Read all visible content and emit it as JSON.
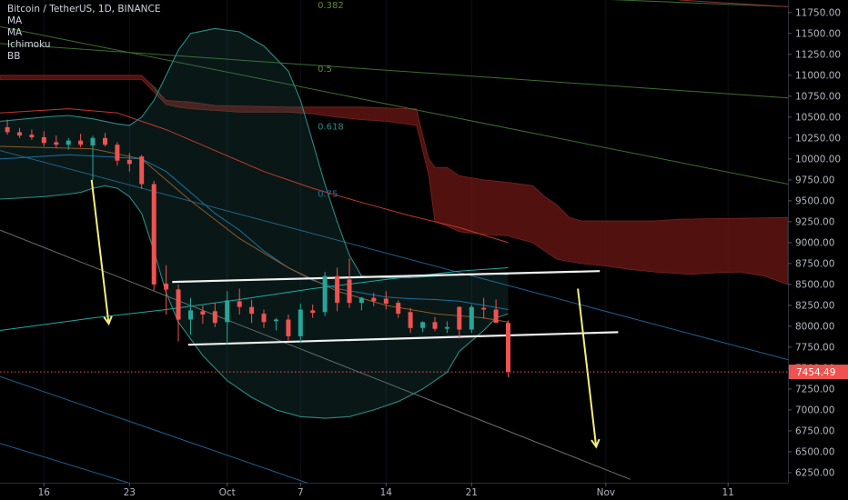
{
  "legend": {
    "title": "Bitcoin / TetherUS, 1D, BINANCE",
    "indicators": [
      "MA",
      "MA",
      "Ichimoku",
      "BB"
    ]
  },
  "chart_data": {
    "type": "candlestick",
    "symbol": "Bitcoin / TetherUS",
    "interval": "1D",
    "exchange": "BINANCE",
    "y_ticks": [
      6250,
      6500,
      6750,
      7000,
      7250,
      7500,
      7750,
      8000,
      8250,
      8500,
      8750,
      9000,
      9250,
      9500,
      9750,
      10000,
      10250,
      10500,
      10750,
      11000,
      11250,
      11500,
      11750
    ],
    "y_tick_labels": [
      "6250.00",
      "6500.00",
      "6750.00",
      "7000.00",
      "7250.00",
      "7500.00",
      "7750.00",
      "8000.00",
      "8250.00",
      "8500.00",
      "8750.00",
      "9000.00",
      "9250.00",
      "9500.00",
      "9750.00",
      "10000.00",
      "10250.00",
      "10500.00",
      "10750.00",
      "11000.00",
      "11250.00",
      "11500.00",
      "11750.00"
    ],
    "ylim": [
      6130,
      11900
    ],
    "x_ticks": [
      {
        "label": "16",
        "day": 0
      },
      {
        "label": "23",
        "day": 7
      },
      {
        "label": "Oct",
        "day": 15
      },
      {
        "label": "7",
        "day": 21
      },
      {
        "label": "14",
        "day": 28
      },
      {
        "label": "21",
        "day": 35
      },
      {
        "label": "Nov",
        "day": 46
      },
      {
        "label": "11",
        "day": 56
      }
    ],
    "xlim": [
      -3.6,
      60.9
    ],
    "last_price": {
      "value": 7454.49,
      "label": "7454.49",
      "color": "#ef5350"
    },
    "fib_labels": [
      {
        "label": "0.382",
        "day": 22.4,
        "price": 11800
      },
      {
        "label": "0.5",
        "day": 22.4,
        "price": 11040
      },
      {
        "label": "0.618",
        "day": 22.4,
        "price": 10350
      },
      {
        "label": "0.75",
        "day": 22.4,
        "price": 9550
      }
    ],
    "candles": [
      {
        "day": -3,
        "o": 10380,
        "h": 10470,
        "l": 10290,
        "c": 10320
      },
      {
        "day": -2,
        "o": 10320,
        "h": 10370,
        "l": 10250,
        "c": 10280
      },
      {
        "day": -1,
        "o": 10290,
        "h": 10350,
        "l": 10230,
        "c": 10260
      },
      {
        "day": 0,
        "o": 10260,
        "h": 10330,
        "l": 10150,
        "c": 10190
      },
      {
        "day": 1,
        "o": 10200,
        "h": 10280,
        "l": 10130,
        "c": 10170
      },
      {
        "day": 2,
        "o": 10170,
        "h": 10250,
        "l": 10110,
        "c": 10220
      },
      {
        "day": 3,
        "o": 10220,
        "h": 10300,
        "l": 10140,
        "c": 10170
      },
      {
        "day": 4,
        "o": 10160,
        "h": 10280,
        "l": 9750,
        "c": 10250
      },
      {
        "day": 5,
        "o": 10250,
        "h": 10310,
        "l": 10150,
        "c": 10170
      },
      {
        "day": 6,
        "o": 10170,
        "h": 10200,
        "l": 9920,
        "c": 9980
      },
      {
        "day": 7,
        "o": 9990,
        "h": 10070,
        "l": 9850,
        "c": 9940
      },
      {
        "day": 8,
        "o": 10030,
        "h": 10050,
        "l": 9640,
        "c": 9700
      },
      {
        "day": 9,
        "o": 9700,
        "h": 9740,
        "l": 8430,
        "c": 8500
      },
      {
        "day": 10,
        "o": 8510,
        "h": 8730,
        "l": 8140,
        "c": 8440
      },
      {
        "day": 11,
        "o": 8440,
        "h": 8500,
        "l": 7820,
        "c": 8080
      },
      {
        "day": 12,
        "o": 8080,
        "h": 8340,
        "l": 7900,
        "c": 8190
      },
      {
        "day": 13,
        "o": 8180,
        "h": 8250,
        "l": 8030,
        "c": 8140
      },
      {
        "day": 14,
        "o": 8180,
        "h": 8280,
        "l": 7990,
        "c": 8040
      },
      {
        "day": 15,
        "o": 8050,
        "h": 8420,
        "l": 7780,
        "c": 8310
      },
      {
        "day": 16,
        "o": 8300,
        "h": 8450,
        "l": 8140,
        "c": 8230
      },
      {
        "day": 17,
        "o": 8230,
        "h": 8320,
        "l": 8040,
        "c": 8150
      },
      {
        "day": 18,
        "o": 8150,
        "h": 8200,
        "l": 7980,
        "c": 8050
      },
      {
        "day": 19,
        "o": 8060,
        "h": 8100,
        "l": 7950,
        "c": 8080
      },
      {
        "day": 20,
        "o": 8080,
        "h": 8140,
        "l": 7820,
        "c": 7880
      },
      {
        "day": 21,
        "o": 7880,
        "h": 8270,
        "l": 7800,
        "c": 8200
      },
      {
        "day": 22,
        "o": 8190,
        "h": 8260,
        "l": 8100,
        "c": 8160
      },
      {
        "day": 23,
        "o": 8170,
        "h": 8650,
        "l": 8120,
        "c": 8600
      },
      {
        "day": 24,
        "o": 8600,
        "h": 8700,
        "l": 8180,
        "c": 8280
      },
      {
        "day": 25,
        "o": 8560,
        "h": 8810,
        "l": 8220,
        "c": 8280
      },
      {
        "day": 26,
        "o": 8280,
        "h": 8350,
        "l": 8190,
        "c": 8340
      },
      {
        "day": 27,
        "o": 8340,
        "h": 8400,
        "l": 8240,
        "c": 8300
      },
      {
        "day": 28,
        "o": 8330,
        "h": 8420,
        "l": 8200,
        "c": 8270
      },
      {
        "day": 29,
        "o": 8280,
        "h": 8310,
        "l": 8100,
        "c": 8150
      },
      {
        "day": 30,
        "o": 8170,
        "h": 8220,
        "l": 7920,
        "c": 7980
      },
      {
        "day": 31,
        "o": 7980,
        "h": 8060,
        "l": 7930,
        "c": 8050
      },
      {
        "day": 32,
        "o": 8050,
        "h": 8110,
        "l": 7940,
        "c": 7970
      },
      {
        "day": 33,
        "o": 7970,
        "h": 8060,
        "l": 7920,
        "c": 7990
      },
      {
        "day": 34,
        "o": 8230,
        "h": 8240,
        "l": 7850,
        "c": 7960
      },
      {
        "day": 35,
        "o": 7960,
        "h": 8260,
        "l": 7920,
        "c": 8230
      },
      {
        "day": 36,
        "o": 8220,
        "h": 8340,
        "l": 8090,
        "c": 8200
      },
      {
        "day": 37,
        "o": 8200,
        "h": 8320,
        "l": 8080,
        "c": 8040
      },
      {
        "day": 38,
        "o": 8040,
        "h": 8070,
        "l": 7390,
        "c": 7454
      }
    ]
  }
}
